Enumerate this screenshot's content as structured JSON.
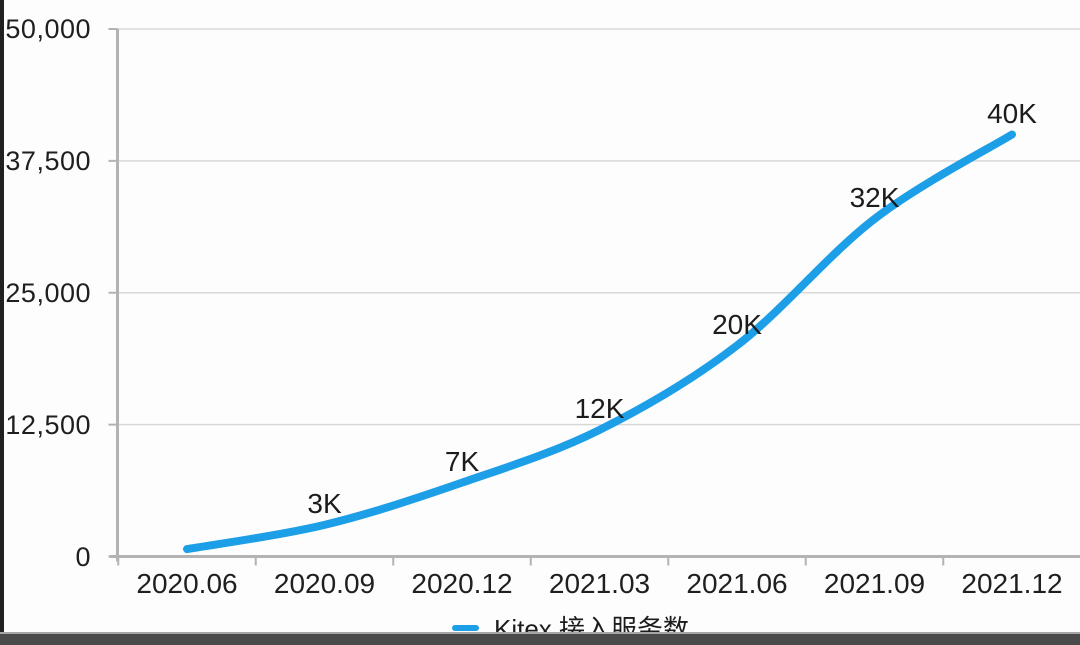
{
  "chart_data": {
    "type": "line",
    "title": "",
    "xlabel": "",
    "ylabel": "",
    "categories": [
      "2020.06",
      "2020.09",
      "2020.12",
      "2021.03",
      "2021.06",
      "2021.09",
      "2021.12"
    ],
    "series": [
      {
        "name": "Kitex 接入服务数",
        "values": [
          700,
          3000,
          7000,
          12000,
          20000,
          32000,
          40000
        ],
        "point_labels": [
          "",
          "3K",
          "7K",
          "12K",
          "20K",
          "32K",
          "40K"
        ],
        "color": "#1d9fe8"
      }
    ],
    "ylim": [
      0,
      50000
    ],
    "ytick_values": [
      0,
      12500,
      25000,
      37500,
      50000
    ],
    "ytick_labels": [
      "0",
      "12,500",
      "25,000",
      "37,500",
      "50,000"
    ],
    "grid": "horizontal",
    "legend_position": "bottom"
  },
  "legend": {
    "label": "Kitex 接入服务数",
    "marker_color": "#1d9fe8"
  },
  "colors": {
    "line": "#1d9fe8",
    "gridline": "#d9d9d9",
    "axis": "#b3b3b3",
    "text": "#1f1f1f",
    "left_bar": "#212121",
    "bottom_bar": "#4a4a4a"
  }
}
